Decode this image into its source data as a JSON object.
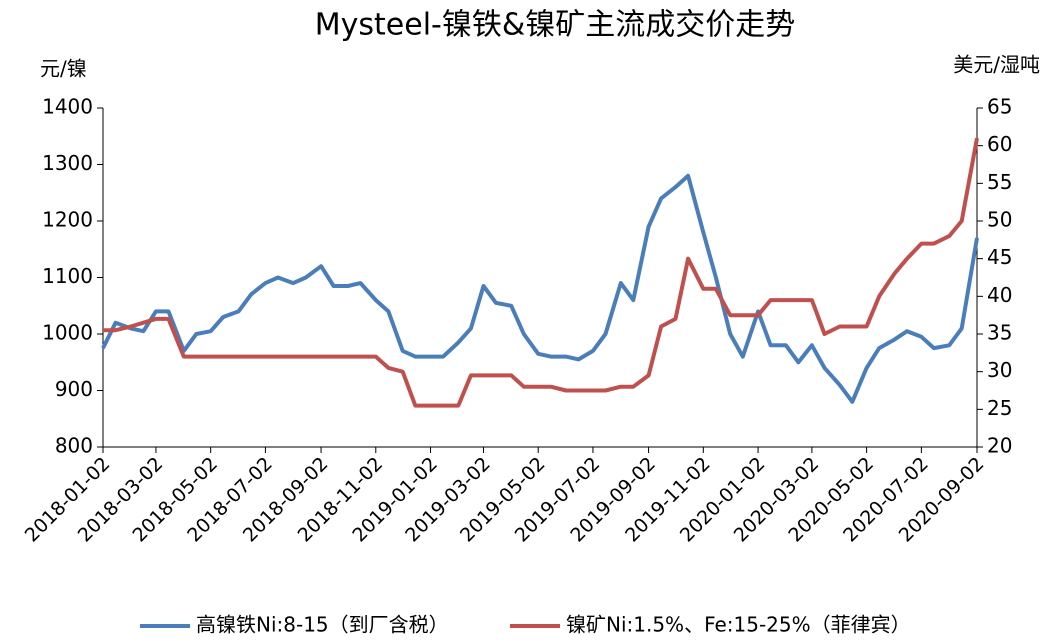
{
  "chart_data": {
    "type": "line",
    "title": "Mysteel-镍铁&镍矿主流成交价走势",
    "ylabel": "元/镍",
    "y2label": "美元/湿吨",
    "x": [
      "2018-01-02",
      "2018-01-16",
      "2018-02-02",
      "2018-02-16",
      "2018-03-02",
      "2018-03-16",
      "2018-04-02",
      "2018-04-16",
      "2018-05-02",
      "2018-05-16",
      "2018-06-02",
      "2018-06-16",
      "2018-07-02",
      "2018-07-16",
      "2018-08-02",
      "2018-08-16",
      "2018-09-02",
      "2018-09-16",
      "2018-10-02",
      "2018-10-16",
      "2018-11-02",
      "2018-11-16",
      "2018-12-02",
      "2018-12-16",
      "2019-01-02",
      "2019-01-16",
      "2019-02-02",
      "2019-02-16",
      "2019-03-02",
      "2019-03-16",
      "2019-04-02",
      "2019-04-16",
      "2019-05-02",
      "2019-05-16",
      "2019-06-02",
      "2019-06-16",
      "2019-07-02",
      "2019-07-16",
      "2019-08-02",
      "2019-08-16",
      "2019-09-02",
      "2019-09-16",
      "2019-10-02",
      "2019-10-16",
      "2019-11-02",
      "2019-11-16",
      "2019-12-02",
      "2019-12-16",
      "2020-01-02",
      "2020-01-16",
      "2020-02-02",
      "2020-02-16",
      "2020-03-02",
      "2020-03-16",
      "2020-04-02",
      "2020-04-16",
      "2020-05-02",
      "2020-05-16",
      "2020-06-02",
      "2020-06-16",
      "2020-07-02",
      "2020-07-16",
      "2020-08-02",
      "2020-08-16",
      "2020-09-02"
    ],
    "xlim": [
      "2018-01-02",
      "2020-09-02"
    ],
    "xticks": [
      "2018-01-02",
      "2018-03-02",
      "2018-05-02",
      "2018-07-02",
      "2018-09-02",
      "2018-11-02",
      "2019-01-02",
      "2019-03-02",
      "2019-05-02",
      "2019-07-02",
      "2019-09-02",
      "2019-11-02",
      "2020-01-02",
      "2020-03-02",
      "2020-05-02",
      "2020-07-02",
      "2020-09-02"
    ],
    "series": [
      {
        "name": "高镍铁Ni:8-15（到厂含税）",
        "color": "#4a7ebb",
        "values": [
          975,
          1020,
          1010,
          1005,
          1040,
          1040,
          970,
          1000,
          1005,
          1030,
          1040,
          1070,
          1090,
          1100,
          1090,
          1100,
          1120,
          1085,
          1085,
          1090,
          1060,
          1040,
          970,
          960,
          960,
          960,
          985,
          1010,
          1085,
          1055,
          1050,
          1000,
          965,
          960,
          960,
          955,
          970,
          1000,
          1090,
          1060,
          1190,
          1240,
          1260,
          1280,
          1180,
          1100,
          1000,
          960,
          1040,
          980,
          980,
          950,
          980,
          940,
          910,
          880,
          940,
          975,
          990,
          1005,
          995,
          975,
          980,
          1010,
          1170
        ]
      },
      {
        "name": "镍矿Ni:1.5%、Fe:15-25%（菲律宾）",
        "color": "#c0504d",
        "axis": "y2",
        "values": [
          35.5,
          35.5,
          36,
          36.5,
          37,
          37,
          32,
          32,
          32,
          32,
          32,
          32,
          32,
          32,
          32,
          32,
          32,
          32,
          32,
          32,
          32,
          30.5,
          30,
          25.5,
          25.5,
          25.5,
          25.5,
          29.5,
          29.5,
          29.5,
          29.5,
          28,
          28,
          28,
          27.5,
          27.5,
          27.5,
          27.5,
          28,
          28,
          29.5,
          36,
          37,
          45,
          41,
          41,
          37.5,
          37.5,
          37.5,
          39.5,
          39.5,
          39.5,
          39.5,
          35,
          36,
          36,
          36,
          40,
          43,
          45,
          47,
          47,
          48,
          50,
          61
        ]
      }
    ],
    "ylim": [
      800,
      1400
    ],
    "yticks": [
      800,
      900,
      1000,
      1100,
      1200,
      1300,
      1400
    ],
    "y2lim": [
      20,
      65
    ],
    "y2ticks": [
      20,
      25,
      30,
      35,
      40,
      45,
      50,
      55,
      60,
      65
    ],
    "legend": "bottom"
  }
}
